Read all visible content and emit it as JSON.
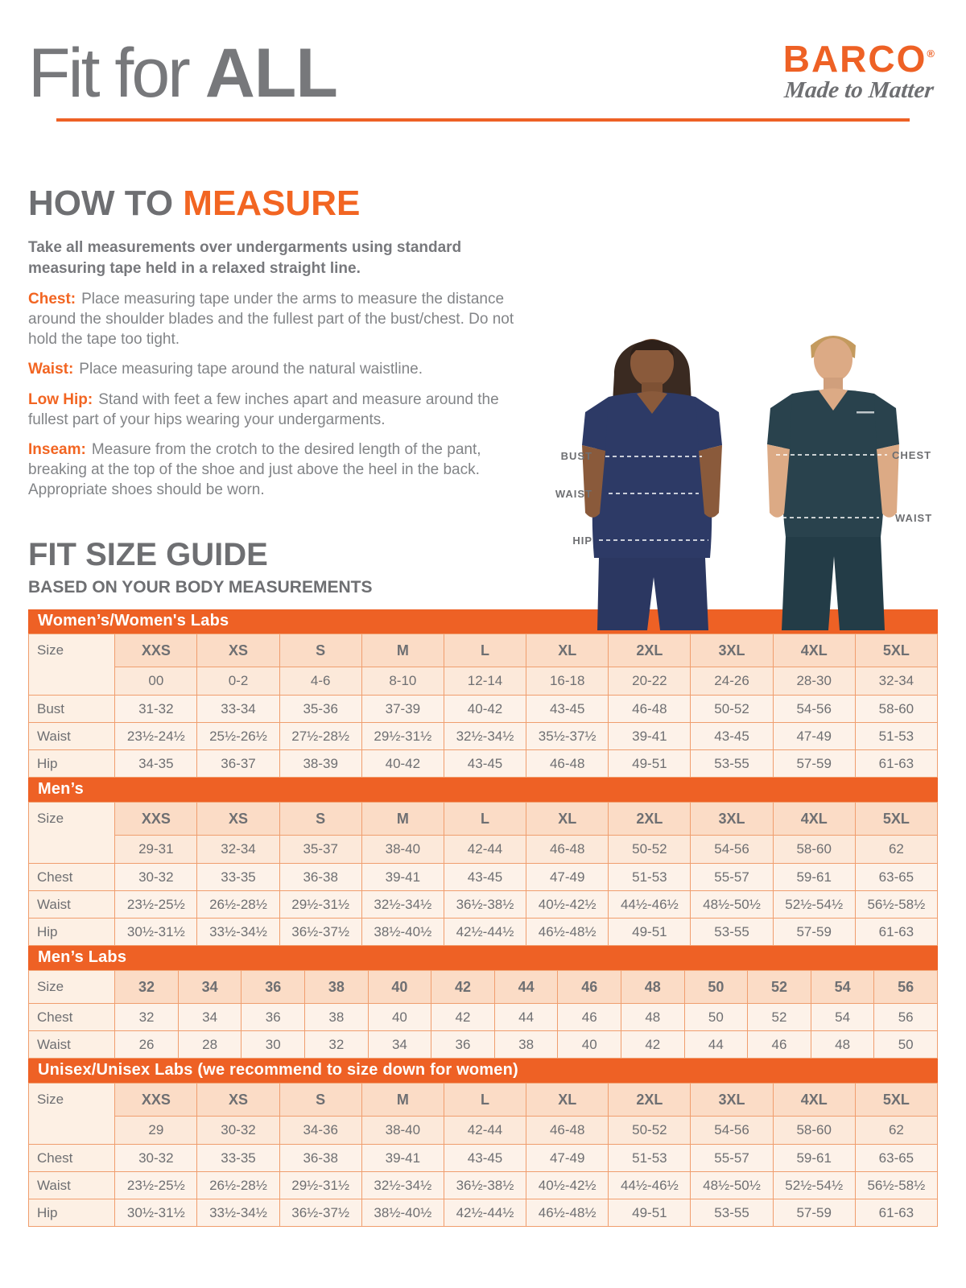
{
  "colors": {
    "accent_orange": "#ee6125",
    "text_orange": "#f26522",
    "text_gray": "#6e6f72",
    "band_text": "#ffffff",
    "row_sizes_bg": "#fbdcc6",
    "row_numeric_bg": "#fce9da",
    "row_values_bg": "#fdf2e9",
    "table_border": "#f09e6e",
    "woman_scrubs": "#2d3a66",
    "man_scrubs": "#29424d"
  },
  "header": {
    "title_regular": "Fit for ",
    "title_bold": "ALL",
    "brand_name": "BARCO",
    "brand_registered": "®",
    "brand_tagline": "Made to Matter"
  },
  "how_to_measure": {
    "heading_gray": "HOW TO ",
    "heading_orange": "MEASURE",
    "intro": "Take all measurements over undergarments using standard measuring tape held in a relaxed straight line.",
    "items": [
      {
        "label": "Chest:",
        "text": "Place measuring tape under the arms to measure the distance around the shoulder blades and the fullest part of the bust/chest. Do not hold the tape too tight."
      },
      {
        "label": "Waist:",
        "text": "Place measuring tape around the natural waistline."
      },
      {
        "label": "Low Hip:",
        "text": "Stand with feet a few inches apart and measure around the fullest part of your hips wearing your undergarments."
      },
      {
        "label": "Inseam:",
        "text": "Measure from the crotch to the desired length of the pant, breaking at the top of the shoe and just above the heel in the back. Appropriate shoes should be worn."
      }
    ]
  },
  "figure": {
    "bust": "BUST",
    "waist_left": "WAIST",
    "hip": "HIP",
    "chest": "CHEST",
    "waist_right": "WAIST"
  },
  "size_guide": {
    "heading": "FIT SIZE GUIDE",
    "subheading": "BASED ON YOUR BODY MEASUREMENTS",
    "tables": [
      {
        "title": "Women’s/Women's Labs",
        "size_label": "Size",
        "sizes": [
          "XXS",
          "XS",
          "S",
          "M",
          "L",
          "XL",
          "2XL",
          "3XL",
          "4XL",
          "5XL"
        ],
        "numeric": [
          "00",
          "0-2",
          "4-6",
          "8-10",
          "12-14",
          "16-18",
          "20-22",
          "24-26",
          "28-30",
          "32-34"
        ],
        "rows": [
          {
            "label": "Bust",
            "values": [
              "31-32",
              "33-34",
              "35-36",
              "37-39",
              "40-42",
              "43-45",
              "46-48",
              "50-52",
              "54-56",
              "58-60"
            ]
          },
          {
            "label": "Waist",
            "values": [
              "23½-24½",
              "25½-26½",
              "27½-28½",
              "29½-31½",
              "32½-34½",
              "35½-37½",
              "39-41",
              "43-45",
              "47-49",
              "51-53"
            ]
          },
          {
            "label": "Hip",
            "values": [
              "34-35",
              "36-37",
              "38-39",
              "40-42",
              "43-45",
              "46-48",
              "49-51",
              "53-55",
              "57-59",
              "61-63"
            ]
          }
        ]
      },
      {
        "title": "Men’s",
        "size_label": "Size",
        "sizes": [
          "XXS",
          "XS",
          "S",
          "M",
          "L",
          "XL",
          "2XL",
          "3XL",
          "4XL",
          "5XL"
        ],
        "numeric": [
          "29-31",
          "32-34",
          "35-37",
          "38-40",
          "42-44",
          "46-48",
          "50-52",
          "54-56",
          "58-60",
          "62"
        ],
        "rows": [
          {
            "label": "Chest",
            "values": [
              "30-32",
              "33-35",
              "36-38",
              "39-41",
              "43-45",
              "47-49",
              "51-53",
              "55-57",
              "59-61",
              "63-65"
            ]
          },
          {
            "label": "Waist",
            "values": [
              "23½-25½",
              "26½-28½",
              "29½-31½",
              "32½-34½",
              "36½-38½",
              "40½-42½",
              "44½-46½",
              "48½-50½",
              "52½-54½",
              "56½-58½"
            ]
          },
          {
            "label": "Hip",
            "values": [
              "30½-31½",
              "33½-34½",
              "36½-37½",
              "38½-40½",
              "42½-44½",
              "46½-48½",
              "49-51",
              "53-55",
              "57-59",
              "61-63"
            ]
          }
        ]
      },
      {
        "title": "Men’s Labs",
        "size_label": "Size",
        "sizes": [
          "32",
          "34",
          "36",
          "38",
          "40",
          "42",
          "44",
          "46",
          "48",
          "50",
          "52",
          "54",
          "56"
        ],
        "rows": [
          {
            "label": "Chest",
            "values": [
              "32",
              "34",
              "36",
              "38",
              "40",
              "42",
              "44",
              "46",
              "48",
              "50",
              "52",
              "54",
              "56"
            ]
          },
          {
            "label": "Waist",
            "values": [
              "26",
              "28",
              "30",
              "32",
              "34",
              "36",
              "38",
              "40",
              "42",
              "44",
              "46",
              "48",
              "50"
            ]
          }
        ]
      },
      {
        "title": "Unisex/Unisex Labs (we recommend to size down for women)",
        "size_label": "Size",
        "sizes": [
          "XXS",
          "XS",
          "S",
          "M",
          "L",
          "XL",
          "2XL",
          "3XL",
          "4XL",
          "5XL"
        ],
        "numeric": [
          "29",
          "30-32",
          "34-36",
          "38-40",
          "42-44",
          "46-48",
          "50-52",
          "54-56",
          "58-60",
          "62"
        ],
        "rows": [
          {
            "label": "Chest",
            "values": [
              "30-32",
              "33-35",
              "36-38",
              "39-41",
              "43-45",
              "47-49",
              "51-53",
              "55-57",
              "59-61",
              "63-65"
            ]
          },
          {
            "label": "Waist",
            "values": [
              "23½-25½",
              "26½-28½",
              "29½-31½",
              "32½-34½",
              "36½-38½",
              "40½-42½",
              "44½-46½",
              "48½-50½",
              "52½-54½",
              "56½-58½"
            ]
          },
          {
            "label": "Hip",
            "values": [
              "30½-31½",
              "33½-34½",
              "36½-37½",
              "38½-40½",
              "42½-44½",
              "46½-48½",
              "49-51",
              "53-55",
              "57-59",
              "61-63"
            ]
          }
        ]
      }
    ]
  }
}
